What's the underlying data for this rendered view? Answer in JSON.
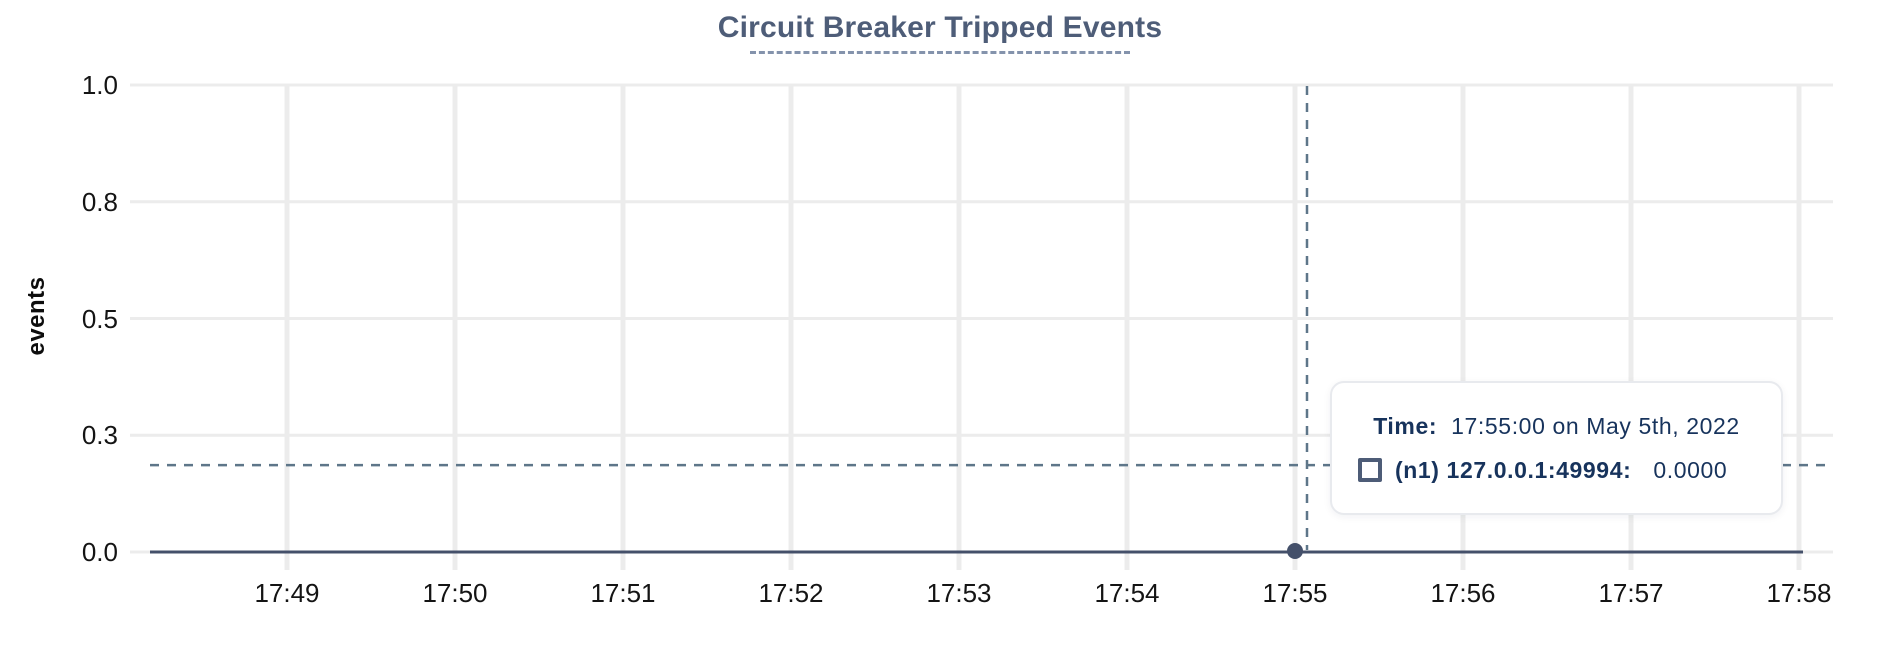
{
  "title": "Circuit Breaker Tripped Events",
  "colors": {
    "title": "#4e5d78",
    "title_underline": "#8493ac",
    "gridline": "#ececec",
    "axis_label": "#141414",
    "series_line": "#44506a",
    "marker_dot": "#44506a",
    "crosshair": "#5e7689",
    "tooltip_text": "#17335c",
    "tooltip_border": "#e8eaee",
    "series_icon_border": "#4d5c77"
  },
  "chart_data": {
    "type": "line",
    "title": "Circuit Breaker Tripped Events",
    "xlabel": "",
    "ylabel": "events",
    "ylim": [
      0.0,
      1.0
    ],
    "x_range_hint": [
      "17:48:10",
      "17:58:10"
    ],
    "grid": true,
    "legend_position": "none",
    "x_ticks": [
      "17:49",
      "17:50",
      "17:51",
      "17:52",
      "17:53",
      "17:54",
      "17:55",
      "17:56",
      "17:57",
      "17:58"
    ],
    "y_ticks": {
      "labels": [
        "1.0",
        "0.8",
        "0.5",
        "0.3",
        "0.0"
      ],
      "values": [
        1.0,
        0.75,
        0.5,
        0.25,
        0.0
      ]
    },
    "series": [
      {
        "name": "(n1) 127.0.0.1:49994",
        "points": [
          {
            "x": "17:48:10",
            "y": 0.0
          },
          {
            "x": "17:58:00",
            "y": 0.0
          }
        ],
        "note": "flat line at 0 events across the entire visible range"
      }
    ],
    "hovered_point": {
      "x": "17:55",
      "y": 0.0
    },
    "crosshair": {
      "x": "17:55",
      "y_events": 0.186
    }
  },
  "tooltip": {
    "time_label": "Time:",
    "time_value": "17:55:00 on May 5th, 2022",
    "series_icon": "square-outline-icon",
    "series_label": "(n1) 127.0.0.1:49994:",
    "series_value": "0.0000"
  }
}
